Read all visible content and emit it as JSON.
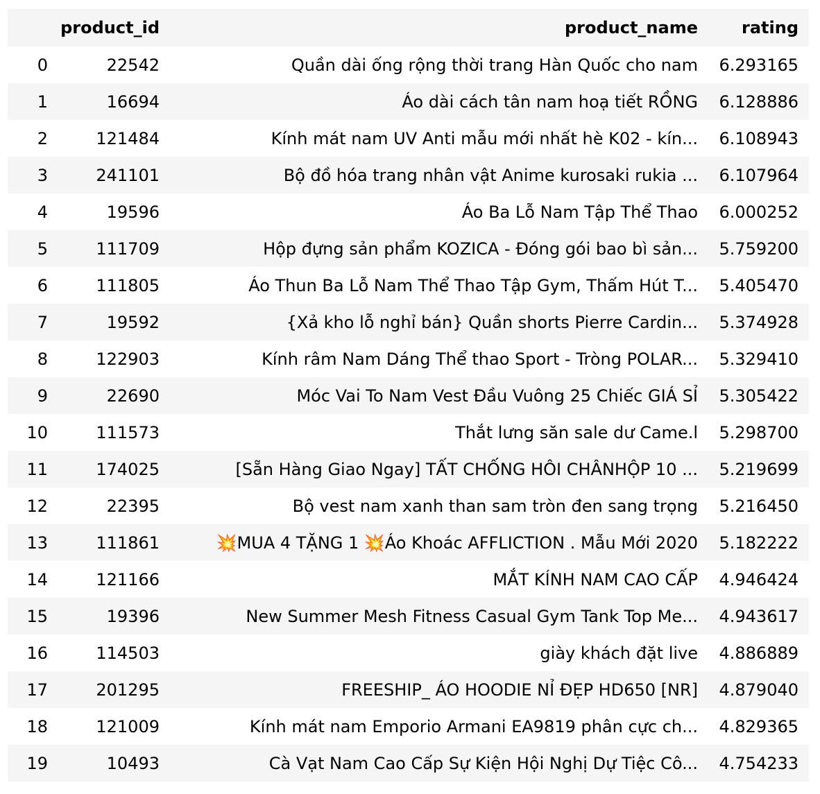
{
  "table": {
    "columns": [
      "",
      "product_id",
      "product_name",
      "rating"
    ],
    "rows": [
      {
        "index": "0",
        "product_id": "22542",
        "product_name": "Quần dài ống rộng thời trang Hàn Quốc cho nam",
        "rating": "6.293165"
      },
      {
        "index": "1",
        "product_id": "16694",
        "product_name": "Áo dài cách tân nam hoạ tiết RỒNG",
        "rating": "6.128886"
      },
      {
        "index": "2",
        "product_id": "121484",
        "product_name": "Kính mát nam UV Anti mẫu mới nhất hè K02 - kín...",
        "rating": "6.108943"
      },
      {
        "index": "3",
        "product_id": "241101",
        "product_name": "Bộ đồ hóa trang nhân vật Anime kurosaki rukia ...",
        "rating": "6.107964"
      },
      {
        "index": "4",
        "product_id": "19596",
        "product_name": "Áo Ba Lỗ Nam Tập Thể Thao",
        "rating": "6.000252"
      },
      {
        "index": "5",
        "product_id": "111709",
        "product_name": "Hộp đựng sản phẩm KOZICA - Đóng gói bao bì sản...",
        "rating": "5.759200"
      },
      {
        "index": "6",
        "product_id": "111805",
        "product_name": "Áo Thun Ba Lỗ Nam Thể Thao Tập Gym, Thấm Hút T...",
        "rating": "5.405470"
      },
      {
        "index": "7",
        "product_id": "19592",
        "product_name": "{Xả kho lỗ nghỉ bán} Quần shorts Pierre Cardin...",
        "rating": "5.374928"
      },
      {
        "index": "8",
        "product_id": "122903",
        "product_name": "Kính râm Nam Dáng Thể thao Sport - Tròng POLAR...",
        "rating": "5.329410"
      },
      {
        "index": "9",
        "product_id": "22690",
        "product_name": "Móc Vai To Nam Vest Đầu Vuông 25 Chiếc GIÁ SỈ",
        "rating": "5.305422"
      },
      {
        "index": "10",
        "product_id": "111573",
        "product_name": "Thắt lưng săn sale dư Came.l",
        "rating": "5.298700"
      },
      {
        "index": "11",
        "product_id": "174025",
        "product_name": "[Sẵn Hàng Giao Ngay] TẤT CHỐNG HÔI CHÂNHỘP 10 ...",
        "rating": "5.219699"
      },
      {
        "index": "12",
        "product_id": "22395",
        "product_name": "Bộ vest nam xanh than sam tròn đen sang trọng",
        "rating": "5.216450"
      },
      {
        "index": "13",
        "product_id": "111861",
        "product_name": "💥MUA 4 TẶNG 1 💥Áo Khoác AFFLICTION . Mẫu Mới 2020",
        "rating": "5.182222"
      },
      {
        "index": "14",
        "product_id": "121166",
        "product_name": "MẮT KÍNH NAM CAO CẤP",
        "rating": "4.946424"
      },
      {
        "index": "15",
        "product_id": "19396",
        "product_name": "New Summer Mesh Fitness Casual Gym Tank Top Me...",
        "rating": "4.943617"
      },
      {
        "index": "16",
        "product_id": "114503",
        "product_name": "giày khách đặt live",
        "rating": "4.886889"
      },
      {
        "index": "17",
        "product_id": "201295",
        "product_name": "FREESHIP_ ÁO HOODIE NỈ ĐẸP HD650 [NR]",
        "rating": "4.879040"
      },
      {
        "index": "18",
        "product_id": "121009",
        "product_name": "Kính mát nam Emporio Armani EA9819 phân cực ch...",
        "rating": "4.829365"
      },
      {
        "index": "19",
        "product_id": "10493",
        "product_name": "Cà Vạt Nam Cao Cấp Sự Kiện Hội Nghị Dự Tiệc Cô...",
        "rating": "4.754233"
      }
    ]
  }
}
